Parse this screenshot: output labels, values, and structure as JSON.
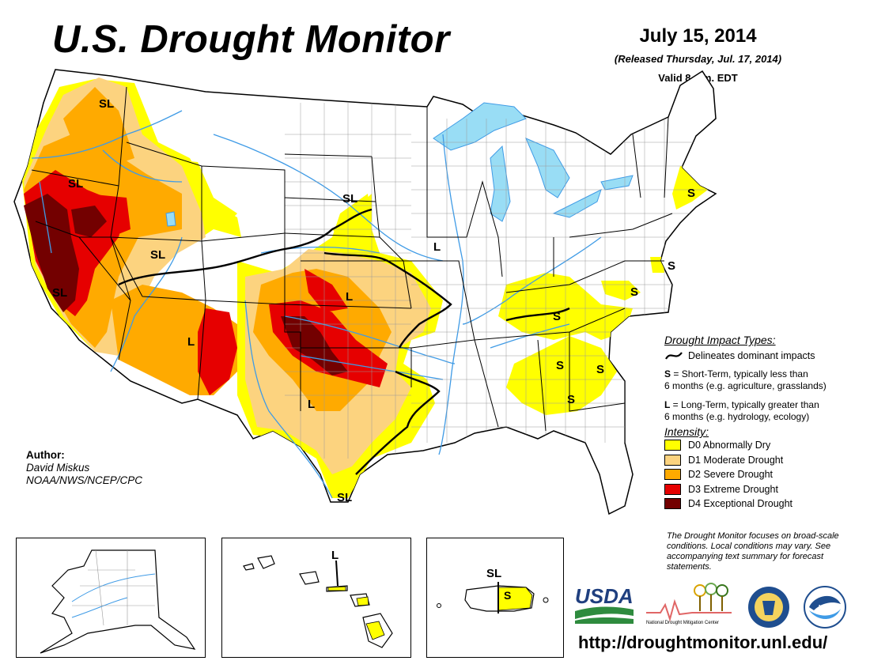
{
  "title": "U.S. Drought Monitor",
  "date": "July 15, 2014",
  "released": "(Released Thursday, Jul. 17, 2014)",
  "valid": "Valid 8 a.m. EDT",
  "map_labels": {
    "sl_northwest": "SL",
    "sl_oregon": "SL",
    "sl_california": "SL",
    "sl_utah": "SL",
    "sl_nebraska": "SL",
    "sl_texas_coast": "SL",
    "l_kansas": "L",
    "l_arizona": "L",
    "l_texas": "L",
    "l_iowa": "L",
    "s_kentucky": "S",
    "s_virginia": "S",
    "s_delaware": "S",
    "s_new_england": "S",
    "s_georgia": "S",
    "s_south_carolina": "S",
    "s_southeast": "S",
    "l_hawaii": "L",
    "sl_puerto_rico": "SL",
    "s_puerto_rico": "S"
  },
  "impact": {
    "heading": "Drought Impact Types:",
    "line_desc": "Delineates dominant impacts",
    "s_key": "S",
    "s_desc_1": " = Short-Term, typically less than",
    "s_desc_2": "6 months (e.g. agriculture, grasslands)",
    "l_key": "L",
    "l_desc_1": " = Long-Term, typically greater than",
    "l_desc_2": "6 months (e.g. hydrology, ecology)"
  },
  "intensity": {
    "heading": "Intensity:",
    "items": [
      {
        "label": "D0 Abnormally Dry",
        "color": "#ffff00"
      },
      {
        "label": "D1 Moderate Drought",
        "color": "#fcd37f"
      },
      {
        "label": "D2 Severe Drought",
        "color": "#ffaa00"
      },
      {
        "label": "D3 Extreme Drought",
        "color": "#e60000"
      },
      {
        "label": "D4 Exceptional Drought",
        "color": "#730000"
      }
    ]
  },
  "author": {
    "label": "Author:",
    "name": "David Miskus",
    "org": "NOAA/NWS/NCEP/CPC"
  },
  "note": "The Drought Monitor focuses on broad-scale conditions. Local conditions may vary. See accompanying text summary for forecast statements.",
  "logos": {
    "usda": "USDA",
    "ndmc": "National Drought Mitigation Center",
    "noaa": "NOAA"
  },
  "url": "http://droughtmonitor.unl.edu/",
  "colors": {
    "water": "#99ddf5",
    "rivers": "#3f9be6",
    "borders": "#000000",
    "counties": "#9a9a9a"
  }
}
